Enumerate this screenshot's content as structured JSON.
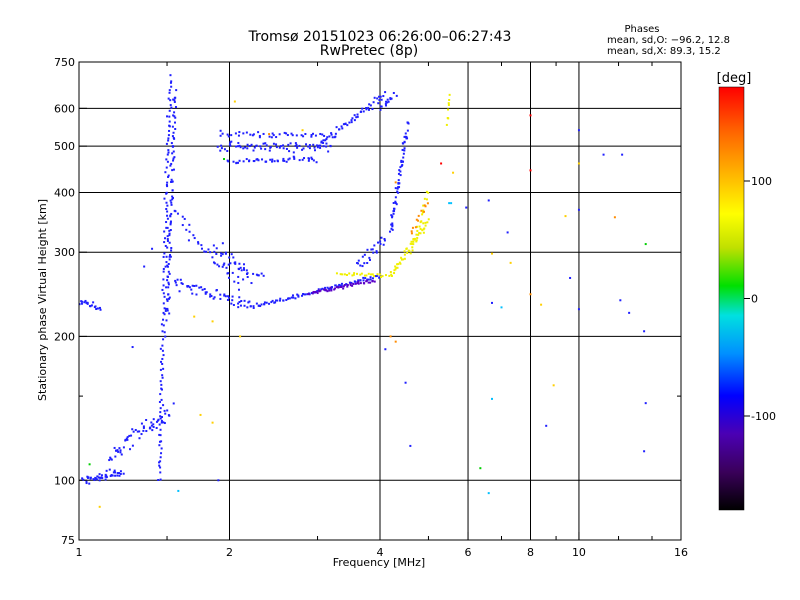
{
  "chart_data": {
    "type": "scatter",
    "title": "Tromsø 20151023 06:26:00–06:27:43",
    "subtitle": "RwPretec (8p)",
    "phases": {
      "title": "Phases",
      "line_o": "mean, sd,O: −96.2, 12.8",
      "line_x": "mean, sd,X:  89.3, 15.2"
    },
    "xlabel": "Frequency [MHz]",
    "ylabel": "Stationary phase Virtual Height [km]",
    "x_scale": "log",
    "y_scale": "log",
    "xlim": [
      1,
      16
    ],
    "ylim": [
      75,
      750
    ],
    "x_ticks": [
      {
        "value": 1,
        "label": "1"
      },
      {
        "value": 2,
        "label": "2"
      },
      {
        "value": 4,
        "label": "4"
      },
      {
        "value": 6,
        "label": "6"
      },
      {
        "value": 8,
        "label": "8"
      },
      {
        "value": 10,
        "label": "10"
      },
      {
        "value": 16,
        "label": "16"
      }
    ],
    "x_grid": [
      2,
      4,
      6,
      8,
      10
    ],
    "x_minor": [
      1.5,
      3,
      5,
      7,
      9,
      12,
      14
    ],
    "y_ticks": [
      {
        "value": 75,
        "label": "75"
      },
      {
        "value": 100,
        "label": "100"
      },
      {
        "value": 200,
        "label": "200"
      },
      {
        "value": 300,
        "label": "300"
      },
      {
        "value": 400,
        "label": "400"
      },
      {
        "value": 500,
        "label": "500"
      },
      {
        "value": 600,
        "label": "600"
      },
      {
        "value": 750,
        "label": "750"
      }
    ],
    "y_grid": [
      100,
      200,
      300,
      400,
      500,
      600
    ],
    "y_minor": [
      150
    ],
    "grid": true,
    "colorbar": {
      "label": "[deg]",
      "range": [
        -180,
        180
      ],
      "ticks": [
        {
          "value": 100,
          "label": "100"
        },
        {
          "value": 0,
          "label": "0"
        },
        {
          "value": -100,
          "label": "-100"
        }
      ],
      "colors": [
        "#000000",
        "#3a005a",
        "#4b00b4",
        "#0000ff",
        "#0090ff",
        "#00e0e0",
        "#00e000",
        "#c0e000",
        "#ffff00",
        "#ffb000",
        "#ff6000",
        "#ff0000"
      ]
    },
    "series": [
      {
        "color": "#1f1fff",
        "traces": [
          {
            "x0": 1.0,
            "x1": 1.1,
            "y0": 238,
            "y1": 230,
            "n": 20,
            "jx": 0.01,
            "jy": 0.02
          },
          {
            "x0": 1.02,
            "x1": 1.22,
            "y0": 100,
            "y1": 104,
            "n": 45,
            "jx": 0.02,
            "jy": 0.03
          },
          {
            "x0": 1.15,
            "x1": 1.52,
            "y0": 112,
            "y1": 140,
            "n": 60,
            "jx": 0.03,
            "jy": 0.06
          },
          {
            "x0": 1.45,
            "x1": 1.52,
            "y0": 100,
            "y1": 700,
            "n": 120,
            "jx": 0.015,
            "jy": 0.02
          },
          {
            "x0": 1.5,
            "x1": 1.56,
            "y0": 220,
            "y1": 650,
            "n": 80,
            "jx": 0.012,
            "jy": 0.05
          },
          {
            "x0": 1.55,
            "x1": 2.2,
            "y0": 260,
            "y1": 232,
            "n": 55,
            "jx": 0.02,
            "jy": 0.04
          },
          {
            "x0": 2.2,
            "x1": 4.0,
            "y0": 230,
            "y1": 268,
            "n": 90,
            "jx": 0.01,
            "jy": 0.015
          },
          {
            "x0": 1.55,
            "x1": 2.1,
            "y0": 360,
            "y1": 255,
            "n": 35,
            "jx": 0.02,
            "jy": 0.05
          },
          {
            "x0": 1.85,
            "x1": 2.3,
            "y0": 305,
            "y1": 260,
            "n": 40,
            "jx": 0.03,
            "jy": 0.07
          },
          {
            "x0": 1.9,
            "x1": 3.2,
            "y0": 500,
            "y1": 497,
            "n": 70,
            "jx": 0.02,
            "jy": 0.03
          },
          {
            "x0": 1.9,
            "x1": 3.1,
            "y0": 530,
            "y1": 528,
            "n": 40,
            "jx": 0.02,
            "jy": 0.02
          },
          {
            "x0": 2.0,
            "x1": 3.0,
            "y0": 465,
            "y1": 470,
            "n": 45,
            "jx": 0.02,
            "jy": 0.02
          },
          {
            "x0": 3.0,
            "x1": 4.1,
            "y0": 500,
            "y1": 640,
            "n": 55,
            "jx": 0.01,
            "jy": 0.03
          },
          {
            "x0": 3.6,
            "x1": 4.1,
            "y0": 280,
            "y1": 320,
            "n": 25,
            "jx": 0.01,
            "jy": 0.04
          },
          {
            "x0": 4.2,
            "x1": 4.55,
            "y0": 330,
            "y1": 560,
            "n": 60,
            "jx": 0.012,
            "jy": 0.05
          },
          {
            "x0": 4.0,
            "x1": 4.3,
            "y0": 600,
            "y1": 640,
            "n": 14,
            "jx": 0.02,
            "jy": 0.02
          }
        ]
      },
      {
        "color": "#5a00c8",
        "traces": [
          {
            "x0": 2.9,
            "x1": 3.9,
            "y0": 246,
            "y1": 262,
            "n": 45,
            "jx": 0.008,
            "jy": 0.012
          }
        ]
      },
      {
        "color": "#f0f000",
        "traces": [
          {
            "x0": 3.3,
            "x1": 4.2,
            "y0": 270,
            "y1": 268,
            "n": 25,
            "jx": 0.01,
            "jy": 0.015
          },
          {
            "x0": 4.2,
            "x1": 5.0,
            "y0": 270,
            "y1": 350,
            "n": 45,
            "jx": 0.01,
            "jy": 0.03
          },
          {
            "x0": 4.6,
            "x1": 5.0,
            "y0": 300,
            "y1": 400,
            "n": 20,
            "jx": 0.01,
            "jy": 0.03
          },
          {
            "x0": 5.45,
            "x1": 5.5,
            "y0": 560,
            "y1": 640,
            "n": 8,
            "jx": 0.005,
            "jy": 0.03
          }
        ]
      },
      {
        "color": "#ff8c00",
        "traces": [
          {
            "x0": 4.6,
            "x1": 5.0,
            "y0": 330,
            "y1": 380,
            "n": 12,
            "jx": 0.01,
            "jy": 0.03
          }
        ]
      }
    ],
    "scatter_points": [
      {
        "x": 1.9,
        "y": 100,
        "c": "#1f1fff"
      },
      {
        "x": 1.58,
        "y": 95,
        "c": "#00c0ff"
      },
      {
        "x": 1.1,
        "y": 88,
        "c": "#ffd000"
      },
      {
        "x": 1.05,
        "y": 108,
        "c": "#00d000"
      },
      {
        "x": 1.4,
        "y": 305,
        "c": "#1f1fff"
      },
      {
        "x": 1.35,
        "y": 280,
        "c": "#1f1fff"
      },
      {
        "x": 1.48,
        "y": 315,
        "c": "#1f1fff"
      },
      {
        "x": 1.28,
        "y": 190,
        "c": "#1f1fff"
      },
      {
        "x": 1.75,
        "y": 137,
        "c": "#ffd000"
      },
      {
        "x": 1.85,
        "y": 132,
        "c": "#ffd000"
      },
      {
        "x": 1.7,
        "y": 220,
        "c": "#ffd000"
      },
      {
        "x": 2.1,
        "y": 200,
        "c": "#ffd000"
      },
      {
        "x": 2.05,
        "y": 620,
        "c": "#ffd000"
      },
      {
        "x": 1.85,
        "y": 215,
        "c": "#ffd000"
      },
      {
        "x": 4.2,
        "y": 200,
        "c": "#ff8c00"
      },
      {
        "x": 4.3,
        "y": 195,
        "c": "#ff8c00"
      },
      {
        "x": 4.1,
        "y": 188,
        "c": "#1f1fff"
      },
      {
        "x": 4.5,
        "y": 160,
        "c": "#1f1fff"
      },
      {
        "x": 4.6,
        "y": 118,
        "c": "#1f1fff"
      },
      {
        "x": 4.3,
        "y": 420,
        "c": "#ff8c00"
      },
      {
        "x": 5.3,
        "y": 460,
        "c": "#ff0000"
      },
      {
        "x": 5.6,
        "y": 440,
        "c": "#ffd000"
      },
      {
        "x": 5.95,
        "y": 372,
        "c": "#1f1fff"
      },
      {
        "x": 5.55,
        "y": 380,
        "c": "#00c0ff"
      },
      {
        "x": 6.6,
        "y": 385,
        "c": "#1f1fff"
      },
      {
        "x": 6.7,
        "y": 235,
        "c": "#1f1fff"
      },
      {
        "x": 6.35,
        "y": 106,
        "c": "#00d000"
      },
      {
        "x": 6.7,
        "y": 148,
        "c": "#00c0ff"
      },
      {
        "x": 6.6,
        "y": 94,
        "c": "#00c0ff"
      },
      {
        "x": 6.7,
        "y": 298,
        "c": "#ffd000"
      },
      {
        "x": 7.2,
        "y": 330,
        "c": "#1f1fff"
      },
      {
        "x": 7.3,
        "y": 285,
        "c": "#ffd000"
      },
      {
        "x": 7.0,
        "y": 230,
        "c": "#00c0ff"
      },
      {
        "x": 8.0,
        "y": 580,
        "c": "#ff0000"
      },
      {
        "x": 8.0,
        "y": 445,
        "c": "#ff0000"
      },
      {
        "x": 8.0,
        "y": 245,
        "c": "#ff8c00"
      },
      {
        "x": 8.4,
        "y": 233,
        "c": "#ffd000"
      },
      {
        "x": 8.6,
        "y": 130,
        "c": "#1f1fff"
      },
      {
        "x": 8.9,
        "y": 158,
        "c": "#ffd000"
      },
      {
        "x": 9.4,
        "y": 357,
        "c": "#ffd000"
      },
      {
        "x": 9.6,
        "y": 265,
        "c": "#1f1fff"
      },
      {
        "x": 10.0,
        "y": 540,
        "c": "#1f1fff"
      },
      {
        "x": 10.0,
        "y": 460,
        "c": "#ffd000"
      },
      {
        "x": 10.0,
        "y": 228,
        "c": "#1f1fff"
      },
      {
        "x": 10.0,
        "y": 368,
        "c": "#1f1fff"
      },
      {
        "x": 11.2,
        "y": 480,
        "c": "#1f1fff"
      },
      {
        "x": 12.2,
        "y": 480,
        "c": "#1f1fff"
      },
      {
        "x": 11.8,
        "y": 355,
        "c": "#ff8c00"
      },
      {
        "x": 12.1,
        "y": 238,
        "c": "#1f1fff"
      },
      {
        "x": 12.6,
        "y": 224,
        "c": "#1f1fff"
      },
      {
        "x": 13.6,
        "y": 312,
        "c": "#00d000"
      },
      {
        "x": 13.5,
        "y": 205,
        "c": "#1f1fff"
      },
      {
        "x": 13.6,
        "y": 145,
        "c": "#1f1fff"
      },
      {
        "x": 13.5,
        "y": 115,
        "c": "#1f1fff"
      },
      {
        "x": 5.5,
        "y": 380,
        "c": "#00c0ff"
      },
      {
        "x": 2.4,
        "y": 530,
        "c": "#ff8c00"
      },
      {
        "x": 2.8,
        "y": 540,
        "c": "#ffd000"
      },
      {
        "x": 1.95,
        "y": 470,
        "c": "#00d000"
      }
    ]
  }
}
